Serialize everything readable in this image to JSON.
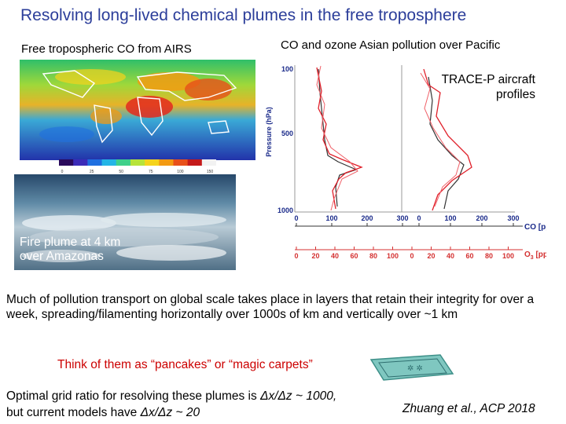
{
  "slide": {
    "title": "Resolving long-lived chemical plumes in the free troposphere",
    "airs_label": "Free tropospheric CO from AIRS",
    "pacific_label": "CO and ozone Asian pollution over Pacific",
    "tracep_label": "TRACE-P aircraft profiles",
    "plume_line1": "Fire plume at 4 km",
    "plume_line2": "over Amazonas",
    "paragraph": "Much of pollution transport on global scale takes place in layers that retain their integrity for over a week, spreading/filamenting horizontally over 1000s of km and vertically over ~1 km",
    "think": "Think of them as “pancakes” or “magic carpets”",
    "grid_line1_prefix": "Optimal grid ratio for resolving these plumes is ",
    "grid_line1_expr": "Δx/Δz ~ 1000,",
    "grid_line2_prefix": "but current models have ",
    "grid_line2_expr": "Δx/Δz ~ 20",
    "citation_author": "Zhuang et al.",
    "citation_rest": ", ACP 2018"
  },
  "colorbar": {
    "ticks": [
      "0",
      "25",
      "50",
      "75",
      "100",
      "150"
    ],
    "colors": [
      "#2a0a5c",
      "#3b2bb8",
      "#1f6fe0",
      "#23b5e6",
      "#3fd08a",
      "#b7e33a",
      "#f5d31c",
      "#f39a12",
      "#e8501a",
      "#c41a1a",
      "#f2f2f2"
    ]
  },
  "profiles": {
    "pressure_axis_label": "Pressure (hPa)",
    "pressure_ticks": [
      "100",
      "500",
      "1000"
    ],
    "co_axis_label": "CO [ppbv]",
    "co_ticks": [
      "0",
      "100",
      "200",
      "300",
      "0",
      "100",
      "200",
      "300"
    ],
    "o3_axis_label": "O",
    "o3_axis_sub": "3",
    "o3_axis_unit": " [ppbv]",
    "o3_ticks": [
      "0",
      "20",
      "40",
      "60",
      "80",
      "100",
      "0",
      "20",
      "40",
      "60",
      "80",
      "100"
    ]
  },
  "colors": {
    "title": "#2c3e9a",
    "think": "#cc0000",
    "profile_red": "#e0202a",
    "axis_red": "#d43030",
    "carpet": "#7fc7c0"
  }
}
